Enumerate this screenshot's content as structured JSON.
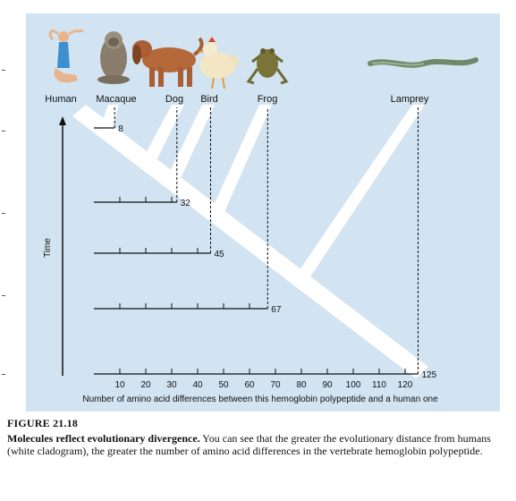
{
  "taxa": [
    {
      "name": "Human",
      "icon": "human-icon"
    },
    {
      "name": "Macaque",
      "icon": "macaque-icon"
    },
    {
      "name": "Dog",
      "icon": "dog-icon"
    },
    {
      "name": "Bird",
      "icon": "bird-icon"
    },
    {
      "name": "Frog",
      "icon": "frog-icon"
    },
    {
      "name": "Lamprey",
      "icon": "lamprey-icon"
    }
  ],
  "chart_data": {
    "type": "bar",
    "categories": [
      "Macaque",
      "Dog",
      "Bird",
      "Frog",
      "Lamprey"
    ],
    "values": [
      8,
      32,
      45,
      67,
      125
    ],
    "value_labels": [
      "8",
      "32",
      "45",
      "67",
      "125"
    ],
    "xlabel": "Number of amino acid differences between this hemoglobin polypeptide and a human one",
    "ylabel": "Time",
    "x_ticks": [
      10,
      20,
      30,
      40,
      50,
      60,
      70,
      80,
      90,
      100,
      110,
      120
    ],
    "xlim": [
      0,
      125
    ],
    "grid": false
  },
  "caption": {
    "title": "FIGURE 21.18",
    "lead": "Molecules reflect evolutionary divergence.",
    "body": " You can see that the greater the evolutionary distance from humans (white cladogram), the greater the number of amino acid differences in the vertebrate hemoglobin polypeptide."
  },
  "colors": {
    "panel_bg": "#d2e3f1",
    "cladogram": "#ffffff",
    "ink": "#111111"
  }
}
